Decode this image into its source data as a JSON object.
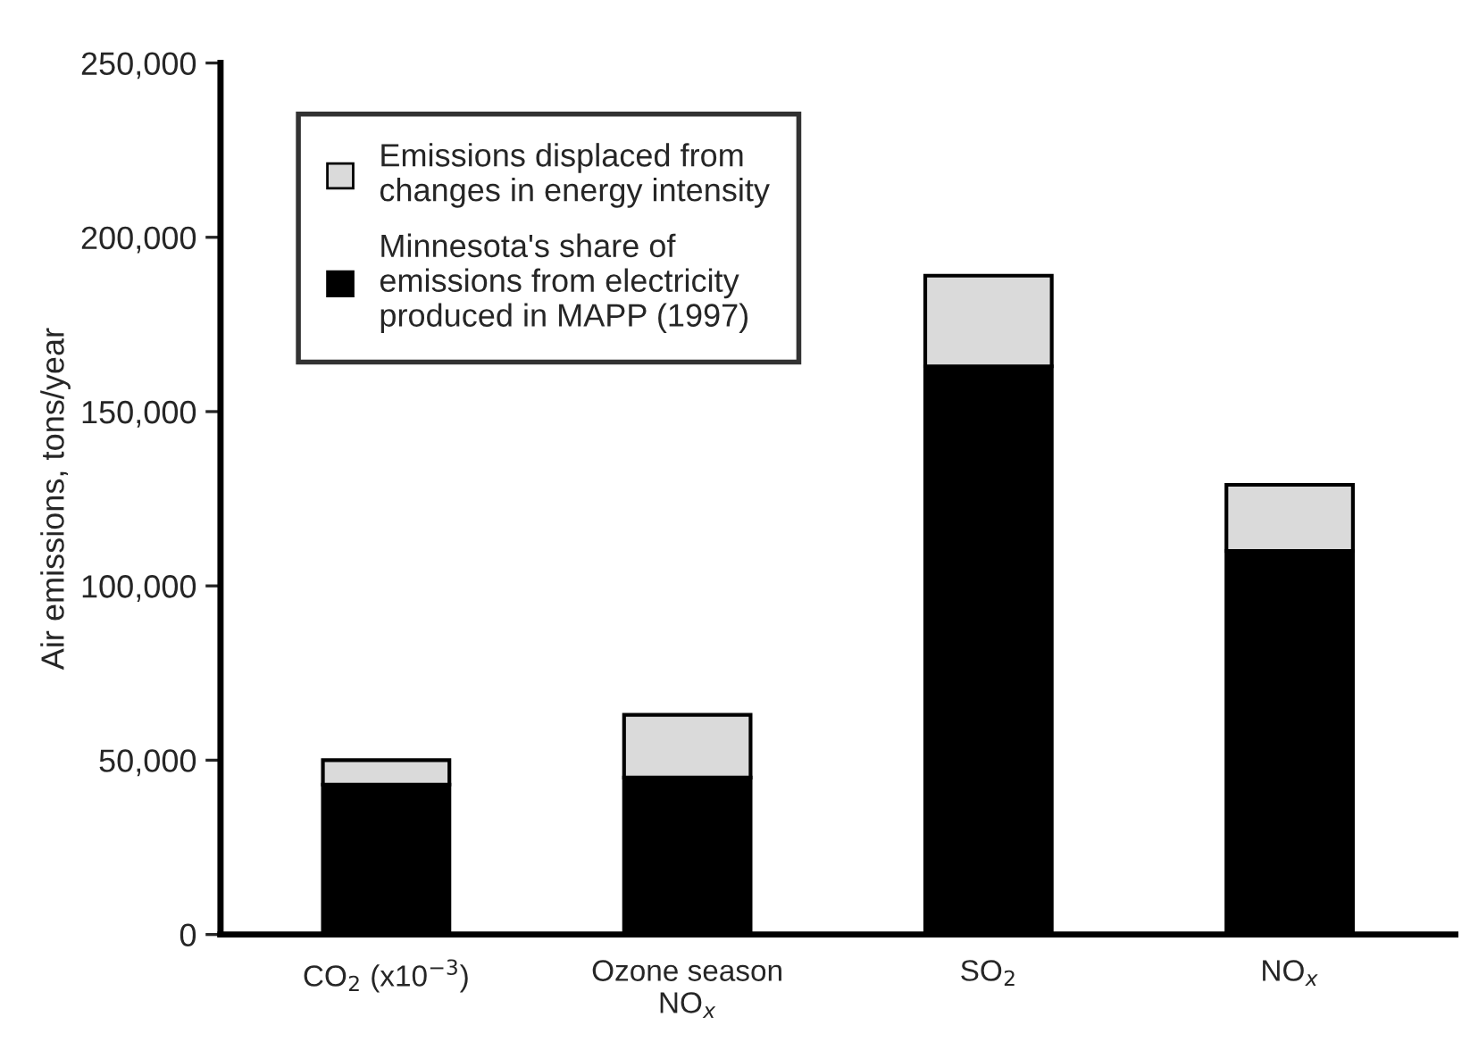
{
  "chart_data": {
    "type": "bar",
    "stacked": true,
    "ylabel": "Air emissions, tons/year",
    "categories": [
      "CO$_{2}$ (x10$^{−3}$)",
      "Ozone season\nNO$_{x}$",
      "SO$_{2}$",
      "NO$_{x}$"
    ],
    "series": [
      {
        "name": "Minnesota's share of\nemissions from electricity\nproduced in MAPP (1997)",
        "color": "#000000",
        "values": [
          43000,
          45000,
          163000,
          110000
        ]
      },
      {
        "name": "Emissions displaced from\nchanges in energy intensity",
        "color": "#dadada",
        "values": [
          7000,
          18000,
          26000,
          19000
        ]
      }
    ],
    "ylim": [
      0,
      250000
    ],
    "yticks": [
      {
        "value": 0,
        "label": "0"
      },
      {
        "value": 50000,
        "label": "50,000"
      },
      {
        "value": 100000,
        "label": "100,000"
      },
      {
        "value": 150000,
        "label": "150,000"
      },
      {
        "value": 200000,
        "label": "200,000"
      },
      {
        "value": 250000,
        "label": "250,000"
      }
    ],
    "legend": "top left",
    "grid": false
  }
}
